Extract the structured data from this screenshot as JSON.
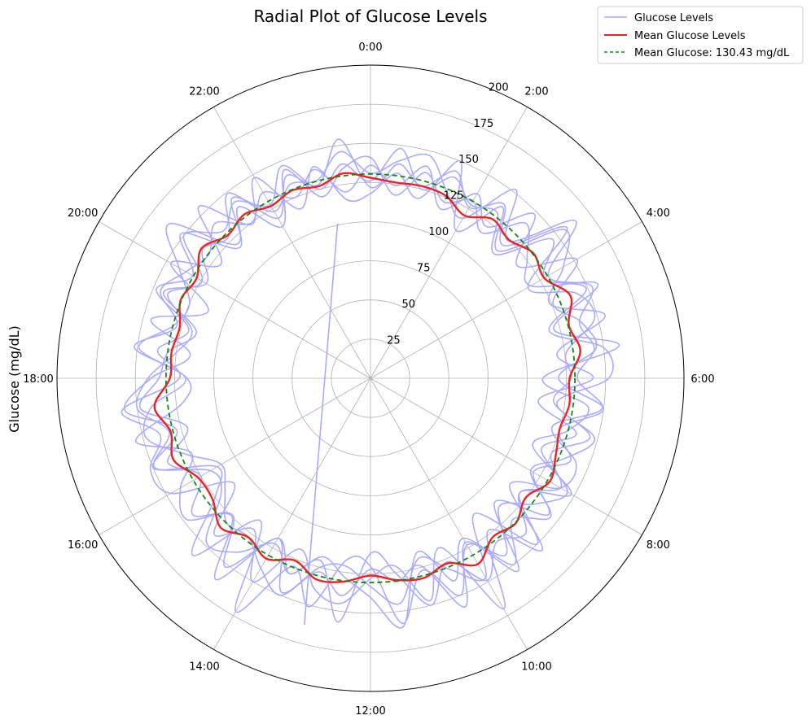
{
  "chart_data": {
    "type": "line",
    "polar": true,
    "title": "Radial Plot of Glucose Levels",
    "ylabel": "Glucose (mg/dL)",
    "rlim": [
      0,
      200
    ],
    "r_ticks": [
      25,
      50,
      75,
      100,
      125,
      150,
      175,
      200
    ],
    "theta_direction": "clockwise",
    "theta_zero": "top",
    "theta_ticks": [
      {
        "hour": 0,
        "label": "0:00"
      },
      {
        "hour": 2,
        "label": "2:00"
      },
      {
        "hour": 4,
        "label": "4:00"
      },
      {
        "hour": 6,
        "label": "6:00"
      },
      {
        "hour": 8,
        "label": "8:00"
      },
      {
        "hour": 10,
        "label": "10:00"
      },
      {
        "hour": 12,
        "label": "12:00"
      },
      {
        "hour": 14,
        "label": "14:00"
      },
      {
        "hour": 16,
        "label": "16:00"
      },
      {
        "hour": 18,
        "label": "18:00"
      },
      {
        "hour": 20,
        "label": "20:00"
      },
      {
        "hour": 22,
        "label": "22:00"
      }
    ],
    "grid": true,
    "legend_position": "top-right",
    "legend": [
      {
        "label": "Glucose Levels",
        "color": "#aaaaff",
        "style": "solid"
      },
      {
        "label": "Mean Glucose Levels",
        "color": "#ee2222",
        "style": "solid"
      },
      {
        "label": "Mean Glucose: 130.43 mg/dL",
        "color": "#118811",
        "style": "dashed"
      }
    ],
    "mean_glucose": 130.43,
    "mean_series": {
      "color": "#ee2222",
      "hours": [
        0,
        0.5,
        1,
        1.5,
        2,
        2.5,
        3,
        3.5,
        4,
        4.5,
        5,
        5.5,
        6,
        6.5,
        7,
        7.5,
        8,
        8.5,
        9,
        9.5,
        10,
        10.5,
        11,
        11.5,
        12,
        12.5,
        13,
        13.5,
        14,
        14.5,
        15,
        15.5,
        16,
        16.5,
        17,
        17.5,
        18,
        18.5,
        19,
        19.5,
        20,
        20.5,
        21,
        21.5,
        22,
        22.5,
        23,
        23.5
      ],
      "values": [
        128,
        126,
        127,
        126,
        120,
        128,
        125,
        131,
        128,
        138,
        131,
        135,
        127,
        128,
        125,
        128,
        132,
        125,
        131,
        128,
        137,
        128,
        132,
        130,
        126,
        131,
        133,
        126,
        133,
        128,
        135,
        127,
        127,
        136,
        132,
        139,
        128,
        128,
        126,
        131,
        128,
        136,
        129,
        132,
        127,
        130,
        127,
        132
      ]
    },
    "daily_series": {
      "color": "#aaaaff",
      "hours": [
        0,
        0.5,
        1,
        1.5,
        2,
        2.5,
        3,
        3.5,
        4,
        4.5,
        5,
        5.5,
        6,
        6.5,
        7,
        7.5,
        8,
        8.5,
        9,
        9.5,
        10,
        10.5,
        11,
        11.5,
        12,
        12.5,
        13,
        13.5,
        14,
        14.5,
        15,
        15.5,
        16,
        16.5,
        17,
        17.5,
        18,
        18.5,
        19,
        19.5,
        20,
        20.5,
        21,
        21.5,
        22,
        22.5,
        23,
        23.5
      ],
      "days": [
        [
          131,
          140,
          147,
          128,
          118,
          152,
          124,
          165,
          131,
          153,
          138,
          144,
          132,
          149,
          120,
          142,
          140,
          112,
          155,
          123,
          170,
          117,
          147,
          121,
          128,
          145,
          139,
          118,
          150,
          122,
          141,
          110,
          147,
          152,
          139,
          160,
          122,
          137,
          120,
          148,
          131,
          152,
          118,
          145,
          123,
          134,
          131,
          146
        ],
        [
          118,
          132,
          119,
          150,
          109,
          138,
          115,
          156,
          142,
          124,
          155,
          120,
          142,
          108,
          136,
          118,
          145,
          132,
          116,
          142,
          123,
          150,
          127,
          158,
          120,
          117,
          151,
          130,
          172,
          115,
          160,
          125,
          113,
          150,
          128,
          158,
          140,
          116,
          145,
          112,
          147,
          120,
          155,
          124,
          148,
          117,
          140,
          115
        ],
        [
          141,
          118,
          136,
          122,
          131,
          117,
          140,
          126,
          118,
          157,
          121,
          160,
          110,
          140,
          130,
          112,
          148,
          120,
          150,
          109,
          147,
          132,
          119,
          145,
          133,
          121,
          125,
          148,
          118,
          162,
          125,
          148,
          140,
          124,
          155,
          121,
          117,
          149,
          130,
          125,
          141,
          162,
          121,
          138,
          112,
          144,
          120,
          135
        ],
        [
          126,
          148,
          125,
          139,
          128,
          133,
          112,
          146,
          128,
          149,
          118,
          150,
          152,
          120,
          148,
          134,
          118,
          145,
          128,
          150,
          118,
          140,
          115,
          160,
          140,
          128,
          118,
          135,
          122,
          140,
          148,
          120,
          118,
          149,
          133,
          150,
          142,
          125,
          118,
          140,
          124,
          150,
          133,
          142,
          128,
          147,
          125,
          138
        ],
        [
          136,
          124,
          140,
          117,
          136,
          122,
          148,
          118,
          152,
          126,
          139,
          145,
          120,
          150,
          125,
          138,
          120,
          143,
          112,
          155,
          121,
          158,
          124,
          131,
          122,
          140,
          128,
          150,
          140,
          128,
          130,
          117,
          110,
          127,
          148,
          141,
          118,
          152,
          128,
          145,
          136,
          130,
          140,
          125,
          137,
          125,
          138,
          120
        ],
        [
          122,
          138,
          127,
          143,
          126,
          140,
          120,
          158,
          116,
          142,
          148,
          126,
          128,
          118,
          145,
          125,
          140,
          120,
          140,
          132,
          149,
          127,
          150,
          126,
          112,
          157,
          121,
          135,
          118,
          152,
          124,
          143,
          125,
          140,
          121,
          148,
          135,
          130,
          115,
          143,
          121,
          135,
          128,
          149,
          118,
          140,
          128,
          154
        ]
      ],
      "anomaly": {
        "from_hour": 13.0,
        "from_value": 163,
        "to_hour": 23.2,
        "to_value": 101
      }
    }
  }
}
